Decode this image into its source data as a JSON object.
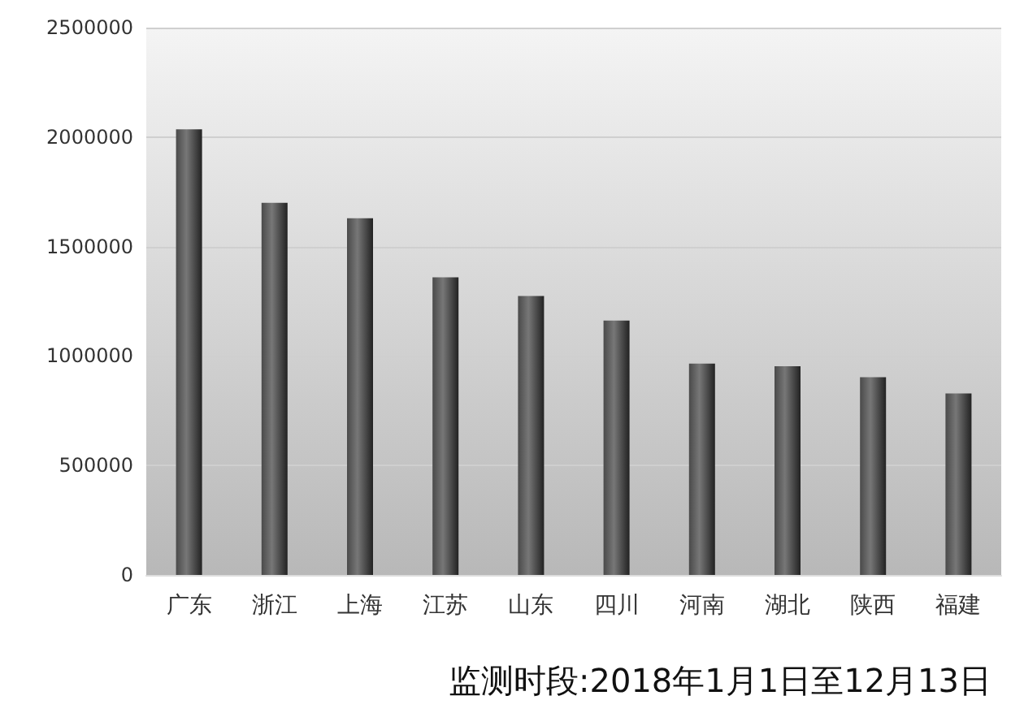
{
  "chart_data": {
    "type": "bar",
    "categories": [
      "广东",
      "浙江",
      "上海",
      "江苏",
      "山东",
      "四川",
      "河南",
      "湖北",
      "陕西",
      "福建"
    ],
    "values": [
      2035000,
      1700000,
      1629000,
      1359000,
      1274000,
      1162000,
      965000,
      953000,
      903000,
      829000
    ],
    "color": "#4a4a4a",
    "ylim": [
      0,
      2500000
    ],
    "yticks": [
      0,
      500000,
      1000000,
      1500000,
      2000000,
      2500000
    ],
    "grid": "y",
    "annotations": [
      "监测时段:2018年1月1日至12月13日"
    ]
  }
}
